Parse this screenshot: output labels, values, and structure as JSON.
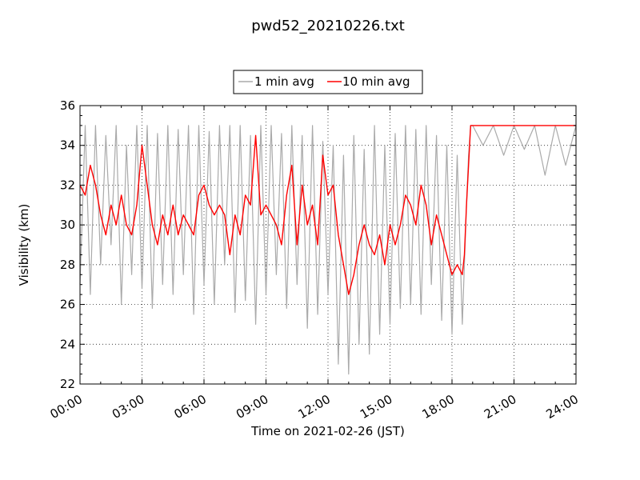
{
  "chart_data": {
    "type": "line",
    "title": "pwd52_20210226.txt",
    "xlabel": "Time on 2021-02-26 (JST)",
    "ylabel": "Visibility (km)",
    "x_unit": "hours",
    "xlim": [
      0,
      24
    ],
    "ylim": [
      22,
      36
    ],
    "x_ticks": [
      0,
      3,
      6,
      9,
      12,
      15,
      18,
      21,
      24
    ],
    "x_tick_labels": [
      "00:00",
      "03:00",
      "06:00",
      "09:00",
      "12:00",
      "15:00",
      "18:00",
      "21:00",
      "24:00"
    ],
    "y_ticks": [
      22,
      24,
      26,
      28,
      30,
      32,
      34,
      36
    ],
    "y_tick_labels": [
      "22",
      "24",
      "26",
      "28",
      "30",
      "32",
      "34",
      "36"
    ],
    "grid": true,
    "legend_position": "top-center",
    "series": [
      {
        "name": "1 min avg",
        "color": "#aaaaaa",
        "x": [
          0,
          0.25,
          0.5,
          0.75,
          1,
          1.25,
          1.5,
          1.75,
          2,
          2.25,
          2.5,
          2.75,
          3,
          3.25,
          3.5,
          3.75,
          4,
          4.25,
          4.5,
          4.75,
          5,
          5.25,
          5.5,
          5.75,
          6,
          6.25,
          6.5,
          6.75,
          7,
          7.25,
          7.5,
          7.75,
          8,
          8.25,
          8.5,
          8.75,
          9,
          9.25,
          9.5,
          9.75,
          10,
          10.25,
          10.5,
          10.75,
          11,
          11.25,
          11.5,
          11.75,
          12,
          12.25,
          12.5,
          12.75,
          13,
          13.25,
          13.5,
          13.75,
          14,
          14.25,
          14.5,
          14.75,
          15,
          15.25,
          15.5,
          15.75,
          16,
          16.25,
          16.5,
          16.75,
          17,
          17.25,
          17.5,
          17.75,
          18,
          18.25,
          18.5,
          18.6,
          18.7,
          18.8,
          18.9,
          19,
          19.5,
          20,
          20.5,
          21,
          21.5,
          22,
          22.5,
          23,
          23.5,
          24
        ],
        "y": [
          27,
          35,
          26.5,
          35,
          28,
          34.5,
          29,
          35,
          26,
          34,
          27.5,
          35,
          26.8,
          35,
          25.8,
          34.6,
          27,
          35,
          26.5,
          34.8,
          27.5,
          35,
          25.5,
          35,
          27,
          34.7,
          26,
          35,
          28,
          35,
          25.6,
          35,
          26.2,
          34.5,
          25,
          35,
          26.5,
          35,
          27.5,
          34.6,
          25.8,
          35,
          27,
          34.5,
          24.8,
          35,
          25.5,
          34.2,
          26.5,
          34,
          23,
          33.5,
          22.5,
          34.5,
          24,
          33.8,
          23.5,
          35,
          24.5,
          34,
          25,
          34.6,
          25.8,
          35,
          26,
          34.8,
          25.5,
          35,
          27,
          34.5,
          25.2,
          34,
          24.5,
          33.5,
          25,
          28,
          31,
          33.5,
          35,
          35,
          34,
          35,
          33.5,
          35,
          33.8,
          35,
          32.5,
          35,
          33,
          35
        ]
      },
      {
        "name": "10 min avg",
        "color": "#ff0000",
        "x": [
          0,
          0.25,
          0.5,
          0.75,
          1,
          1.25,
          1.5,
          1.75,
          2,
          2.25,
          2.5,
          2.75,
          3,
          3.25,
          3.5,
          3.75,
          4,
          4.25,
          4.5,
          4.75,
          5,
          5.25,
          5.5,
          5.75,
          6,
          6.25,
          6.5,
          6.75,
          7,
          7.25,
          7.5,
          7.75,
          8,
          8.25,
          8.5,
          8.75,
          9,
          9.25,
          9.5,
          9.75,
          10,
          10.25,
          10.5,
          10.75,
          11,
          11.25,
          11.5,
          11.75,
          12,
          12.25,
          12.5,
          12.75,
          13,
          13.25,
          13.5,
          13.75,
          14,
          14.25,
          14.5,
          14.75,
          15,
          15.25,
          15.5,
          15.75,
          16,
          16.25,
          16.5,
          16.75,
          17,
          17.25,
          17.5,
          17.75,
          18,
          18.25,
          18.5,
          18.6,
          18.7,
          18.8,
          18.9,
          19,
          19.5,
          20,
          20.5,
          21,
          21.5,
          22,
          22.5,
          23,
          23.5,
          24
        ],
        "y": [
          32,
          31.5,
          33,
          32,
          30.5,
          29.5,
          31,
          30,
          31.5,
          30,
          29.5,
          31,
          34,
          32,
          30,
          29,
          30.5,
          29.5,
          31,
          29.5,
          30.5,
          30,
          29.5,
          31.5,
          32,
          31,
          30.5,
          31,
          30.5,
          28.5,
          30.5,
          29.5,
          31.5,
          31,
          34.5,
          30.5,
          31,
          30.5,
          30,
          29,
          31.5,
          33,
          29,
          32,
          30,
          31,
          29,
          33.5,
          31.5,
          32,
          29.5,
          28,
          26.5,
          27.5,
          29,
          30,
          29,
          28.5,
          29.5,
          28,
          30,
          29,
          30,
          31.5,
          31,
          30,
          32,
          31,
          29,
          30.5,
          29.5,
          28.5,
          27.5,
          28,
          27.5,
          28.5,
          31,
          33,
          35,
          35,
          35,
          35,
          35,
          35,
          35,
          35,
          35,
          35,
          35,
          35
        ]
      }
    ]
  }
}
